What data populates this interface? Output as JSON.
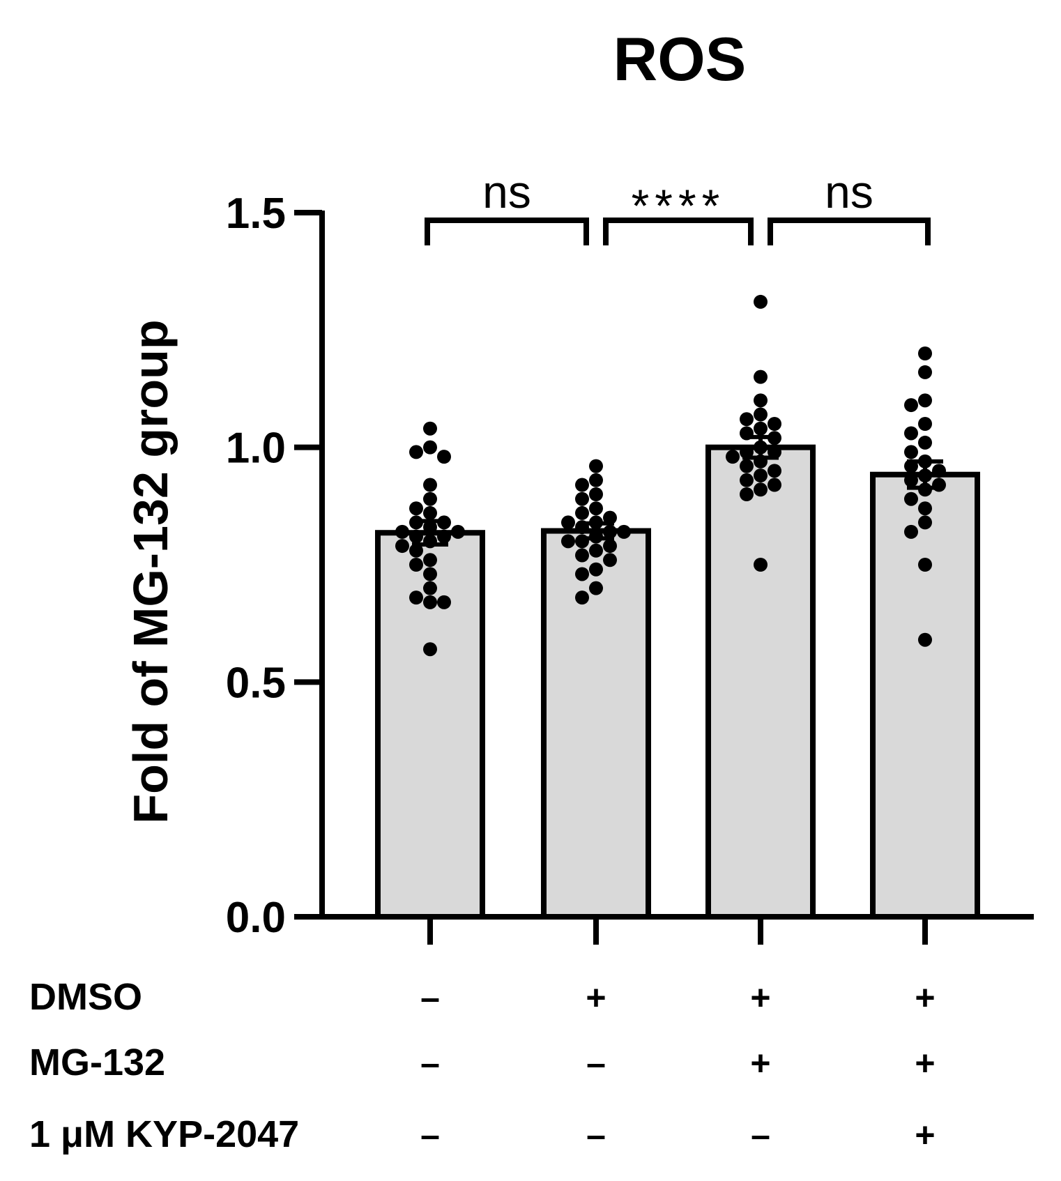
{
  "chart_data": {
    "type": "bar",
    "title": "ROS",
    "ylabel": "Fold of MG-132 group",
    "xlabel": "",
    "ylim": [
      0,
      1.5
    ],
    "yticks": [
      "0.0",
      "0.5",
      "1.0",
      "1.5"
    ],
    "ytick_values": [
      0,
      0.5,
      1.0,
      1.5
    ],
    "bar_color": "#d9d9d9",
    "edge_color": "#000000",
    "groups": [
      {
        "mean": 0.818,
        "sem": 0.025,
        "points": [
          1.04,
          1.0,
          0.99,
          0.98,
          0.92,
          0.89,
          0.87,
          0.86,
          0.84,
          0.84,
          0.83,
          0.82,
          0.82,
          0.81,
          0.81,
          0.8,
          0.79,
          0.78,
          0.76,
          0.75,
          0.73,
          0.7,
          0.68,
          0.67,
          0.67,
          0.57
        ]
      },
      {
        "mean": 0.822,
        "sem": 0.016,
        "points": [
          0.96,
          0.93,
          0.92,
          0.9,
          0.89,
          0.87,
          0.86,
          0.85,
          0.84,
          0.84,
          0.83,
          0.82,
          0.82,
          0.81,
          0.8,
          0.8,
          0.79,
          0.78,
          0.77,
          0.76,
          0.74,
          0.73,
          0.7,
          0.68
        ]
      },
      {
        "mean": 1.0,
        "sem": 0.022,
        "points": [
          1.31,
          1.15,
          1.1,
          1.07,
          1.06,
          1.05,
          1.04,
          1.03,
          1.02,
          1.0,
          0.99,
          0.99,
          0.98,
          0.97,
          0.96,
          0.95,
          0.94,
          0.93,
          0.92,
          0.91,
          0.9,
          0.75
        ]
      },
      {
        "mean": 0.942,
        "sem": 0.028,
        "points": [
          1.2,
          1.16,
          1.1,
          1.09,
          1.05,
          1.03,
          1.01,
          0.99,
          0.97,
          0.96,
          0.95,
          0.94,
          0.93,
          0.92,
          0.91,
          0.89,
          0.87,
          0.84,
          0.82,
          0.75,
          0.59
        ]
      }
    ],
    "comparisons": [
      {
        "from": 0,
        "to": 1,
        "label": "ns"
      },
      {
        "from": 1,
        "to": 2,
        "label": "****"
      },
      {
        "from": 2,
        "to": 3,
        "label": "ns"
      }
    ],
    "conditions": [
      {
        "label": "DMSO",
        "signs": [
          "–",
          "+",
          "+",
          "+"
        ]
      },
      {
        "label": "MG-132",
        "signs": [
          "–",
          "–",
          "+",
          "+"
        ]
      },
      {
        "label": "1 μM KYP-2047",
        "signs": [
          "–",
          "–",
          "–",
          "+"
        ]
      }
    ]
  }
}
